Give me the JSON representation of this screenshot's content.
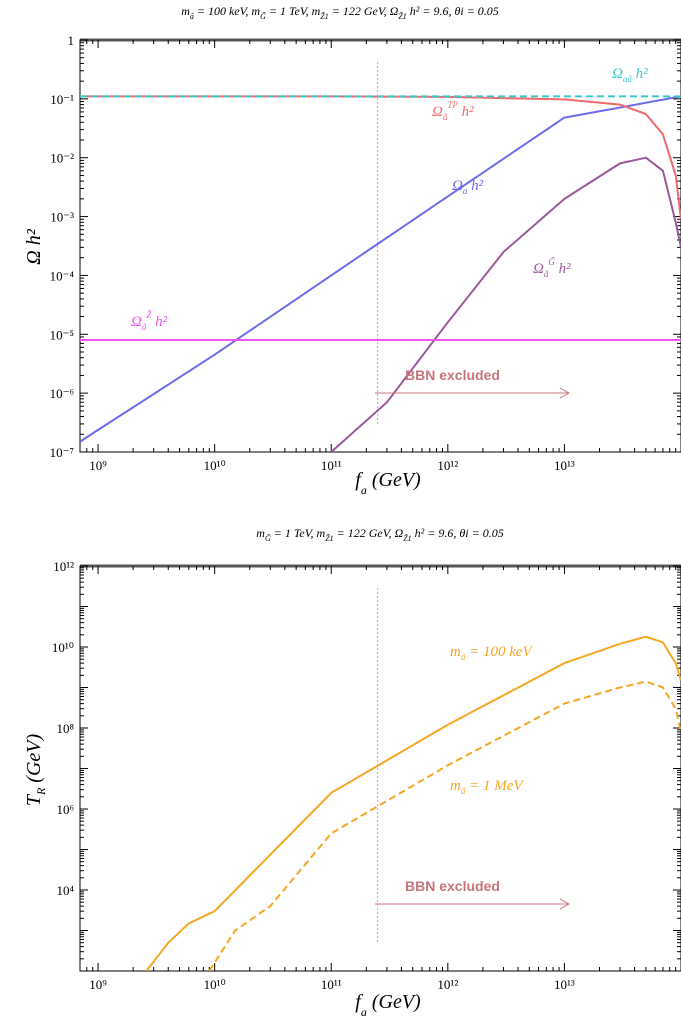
{
  "chart_data": [
    {
      "type": "line",
      "title": "m_ã = 100 keV,   m_G̃ = 1 TeV,   m_Z̃1 = 122 GeV,  Ω_Z̃1 h² = 9.6,  θi = 0.05",
      "xlabel": "f_a (GeV)",
      "ylabel": "Ω h²",
      "x_scale": "log",
      "y_scale": "log",
      "xlim": [
        700000000.0,
        100000000000000.0
      ],
      "ylim": [
        1e-07,
        1
      ],
      "x_ticks": [
        {
          "value": 1000000000.0,
          "label": "10⁹"
        },
        {
          "value": 10000000000.0,
          "label": "10¹⁰"
        },
        {
          "value": 100000000000.0,
          "label": "10¹¹"
        },
        {
          "value": 1000000000000.0,
          "label": "10¹²"
        },
        {
          "value": 10000000000000.0,
          "label": "10¹³"
        }
      ],
      "y_ticks": [
        {
          "value": 1,
          "label": "1"
        },
        {
          "value": 0.1,
          "label": "10⁻¹"
        },
        {
          "value": 0.01,
          "label": "10⁻²"
        },
        {
          "value": 0.001,
          "label": "10⁻³"
        },
        {
          "value": 0.0001,
          "label": "10⁻⁴"
        },
        {
          "value": 1e-05,
          "label": "10⁻⁵"
        },
        {
          "value": 1e-06,
          "label": "10⁻⁶"
        },
        {
          "value": 1e-07,
          "label": "10⁻⁷"
        }
      ],
      "series": [
        {
          "name": "Ω_a h²",
          "color": "#6b6bec",
          "style": "solid",
          "x": [
            700000000.0,
            10000000000.0,
            100000000000.0,
            1000000000000.0,
            10000000000000.0,
            100000000000000.0
          ],
          "y": [
            1.5e-07,
            4.5e-06,
            0.0001,
            0.0022,
            0.048,
            0.11
          ]
        },
        {
          "name": "Ω_ã^TP h²",
          "color": "#ee6b6b",
          "style": "solid",
          "x": [
            700000000.0,
            100000000000.0,
            1000000000000.0,
            10000000000000.0,
            30000000000000.0,
            50000000000000.0,
            70000000000000.0,
            90000000000000.0,
            100000000000000.0
          ],
          "y": [
            0.11,
            0.11,
            0.108,
            0.098,
            0.08,
            0.055,
            0.025,
            0.005,
            0.0009
          ]
        },
        {
          "name": "Ω_aã h²",
          "color": "#3cc8c8",
          "style": "dashed",
          "x": [
            700000000.0,
            100000000000.0,
            1000000000000.0,
            10000000000000.0,
            100000000000000.0
          ],
          "y": [
            0.11,
            0.11,
            0.11,
            0.11,
            0.11
          ]
        },
        {
          "name": "Ω_ã^G̃ h²",
          "color": "#9a5a9a",
          "style": "solid",
          "x": [
            100000000000.0,
            300000000000.0,
            1000000000000.0,
            3000000000000.0,
            10000000000000.0,
            30000000000000.0,
            50000000000000.0,
            70000000000000.0,
            90000000000000.0,
            100000000000000.0
          ],
          "y": [
            1e-07,
            7e-07,
            1.6e-05,
            0.00025,
            0.002,
            0.008,
            0.01,
            0.006,
            0.0008,
            0.0003
          ]
        },
        {
          "name": "Ω_ã^Z̃ h²",
          "color": "#ee52ee",
          "style": "solid",
          "x": [
            700000000.0,
            100000000000000.0
          ],
          "y": [
            8e-06,
            8e-06
          ]
        }
      ],
      "annotations": [
        {
          "text": "BBN excluded",
          "color": "#c8747c"
        }
      ],
      "vline_x": 250000000000.0
    },
    {
      "type": "line",
      "title": "m_G̃ = 1 TeV,  m_Z̃1 = 122 GeV,  Ω_Z̃1 h² = 9.6,  θi = 0.05",
      "xlabel": "f_a (GeV)",
      "ylabel": "T_R (GeV)",
      "x_scale": "log",
      "y_scale": "log",
      "xlim": [
        700000000.0,
        100000000000000.0
      ],
      "ylim": [
        100,
        1000000000000.0
      ],
      "x_ticks": [
        {
          "value": 1000000000.0,
          "label": "10⁹"
        },
        {
          "value": 10000000000.0,
          "label": "10¹⁰"
        },
        {
          "value": 100000000000.0,
          "label": "10¹¹"
        },
        {
          "value": 1000000000000.0,
          "label": "10¹²"
        },
        {
          "value": 10000000000000.0,
          "label": "10¹³"
        }
      ],
      "y_ticks": [
        {
          "value": 1000000000000.0,
          "label": "10¹²"
        },
        {
          "value": 10000000000.0,
          "label": "10¹⁰"
        },
        {
          "value": 100000000.0,
          "label": "10⁸"
        },
        {
          "value": 1000000.0,
          "label": "10⁶"
        },
        {
          "value": 10000.0,
          "label": "10⁴"
        }
      ],
      "series": [
        {
          "name": "m_ã = 100 keV",
          "color": "#f5a623",
          "style": "solid",
          "x": [
            2600000000.0,
            4000000000.0,
            6000000000.0,
            10000000000.0,
            100000000000.0,
            1000000000000.0,
            10000000000000.0,
            30000000000000.0,
            50000000000000.0,
            70000000000000.0,
            90000000000000.0,
            100000000000000.0
          ],
          "y": [
            100,
            500,
            1500,
            3000,
            2500000.0,
            120000000.0,
            4000000000.0,
            12000000000.0,
            18000000000.0,
            13000000000.0,
            4000000000.0,
            1500000000.0
          ]
        },
        {
          "name": "m_ã = 1 MeV",
          "color": "#f5a623",
          "style": "dashed",
          "x": [
            9000000000.0,
            15000000000.0,
            30000000000.0,
            100000000000.0,
            1000000000000.0,
            10000000000000.0,
            30000000000000.0,
            50000000000000.0,
            70000000000000.0,
            90000000000000.0,
            100000000000000.0
          ],
          "y": [
            100,
            1000,
            4000,
            250000.0,
            12000000.0,
            400000000.0,
            1000000000.0,
            1400000000.0,
            1000000000.0,
            300000000.0,
            80000000.0
          ]
        }
      ],
      "annotations": [
        {
          "text": "BBN excluded",
          "color": "#c8747c"
        }
      ],
      "vline_x": 250000000000.0
    }
  ]
}
